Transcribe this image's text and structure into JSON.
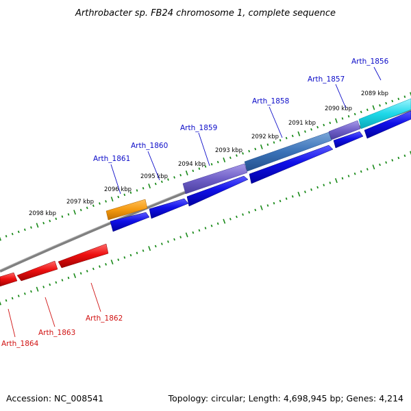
{
  "title": "Arthrobacter sp. FB24 chromosome 1, complete sequence",
  "footer": {
    "accession": "Accession: NC_008541",
    "summary": "Topology: circular; Length: 4,698,945 bp; Genes: 4,214"
  },
  "colors": {
    "forward_gene": "#1010e0",
    "reverse_gene": "#e81010",
    "forward_label": "#0a0ac8",
    "reverse_label": "#d01010",
    "backbone": "#808080",
    "tick": "#1a8a1a"
  },
  "kbp_labels": [
    "2089 kbp",
    "2090 kbp",
    "2091 kbp",
    "2092 kbp",
    "2093 kbp",
    "2094 kbp",
    "2095 kbp",
    "2096 kbp",
    "2097 kbp",
    "2098 kbp"
  ],
  "forward_genes": [
    "Arth_1856",
    "Arth_1857",
    "Arth_1858",
    "Arth_1859",
    "Arth_1860",
    "Arth_1861"
  ],
  "reverse_genes": [
    "Arth_1862",
    "Arth_1863",
    "Arth_1864"
  ],
  "feature_colors": [
    "cyan",
    "purple",
    "steelblue",
    "purple",
    "orange"
  ]
}
